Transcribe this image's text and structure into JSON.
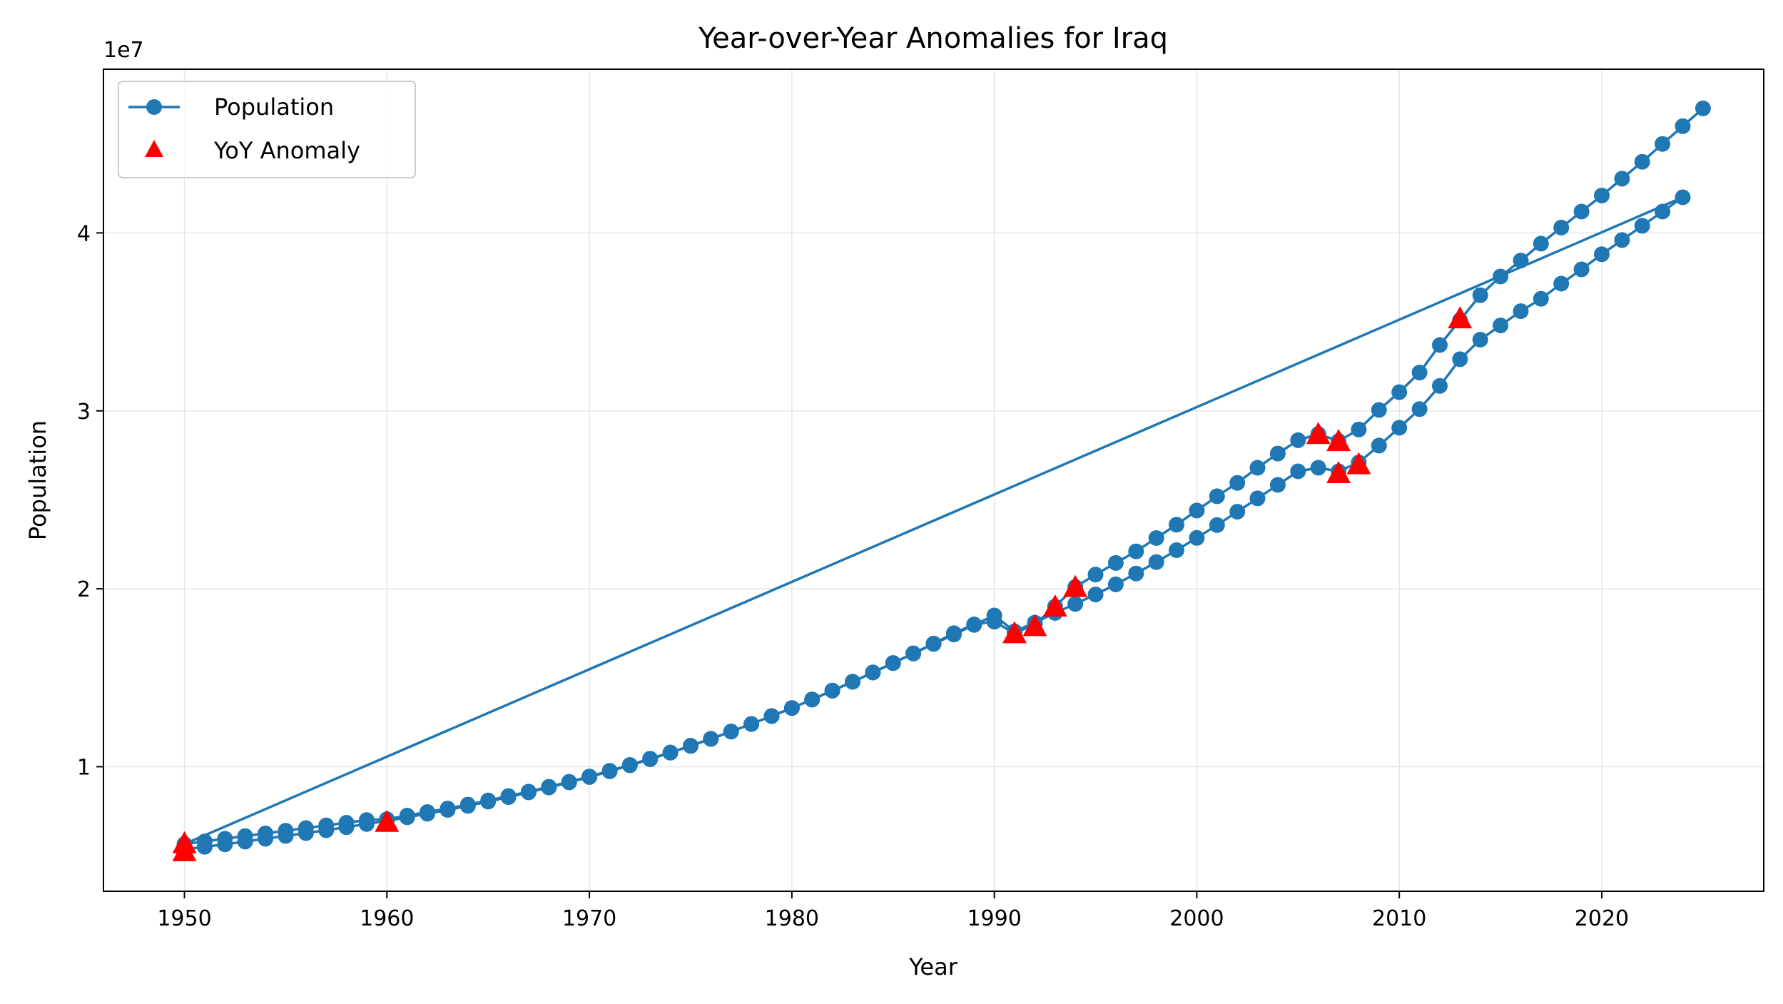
{
  "chart_data": {
    "type": "line",
    "title": "Year-over-Year Anomalies for Iraq",
    "xlabel": "Year",
    "ylabel": "Population",
    "y_offset_label": "1e7",
    "xlim": [
      1946,
      2028
    ],
    "ylim": [
      3000000,
      49200000
    ],
    "x_ticks": [
      1950,
      1960,
      1970,
      1980,
      1990,
      2000,
      2010,
      2020
    ],
    "x_tick_labels": [
      "1950",
      "1960",
      "1970",
      "1980",
      "1990",
      "2000",
      "2010",
      "2020"
    ],
    "y_ticks": [
      10000000,
      20000000,
      30000000,
      40000000
    ],
    "y_tick_labels": [
      "1",
      "2",
      "3",
      "4"
    ],
    "grid": true,
    "legend_position": "top-left",
    "series": [
      {
        "name": "Population",
        "color": "#1f77b4",
        "marker": "circle",
        "points": [
          [
            1950,
            5350000
          ],
          [
            1951,
            5500000
          ],
          [
            1952,
            5640000
          ],
          [
            1953,
            5790000
          ],
          [
            1954,
            5950000
          ],
          [
            1955,
            6110000
          ],
          [
            1956,
            6270000
          ],
          [
            1957,
            6430000
          ],
          [
            1958,
            6600000
          ],
          [
            1959,
            6780000
          ],
          [
            1960,
            6960000
          ],
          [
            1961,
            7160000
          ],
          [
            1962,
            7360000
          ],
          [
            1963,
            7570000
          ],
          [
            1964,
            7800000
          ],
          [
            1965,
            8040000
          ],
          [
            1966,
            8290000
          ],
          [
            1967,
            8560000
          ],
          [
            1968,
            8830000
          ],
          [
            1969,
            9120000
          ],
          [
            1970,
            9420000
          ],
          [
            1971,
            9740000
          ],
          [
            1972,
            10080000
          ],
          [
            1973,
            10420000
          ],
          [
            1974,
            10790000
          ],
          [
            1975,
            11170000
          ],
          [
            1976,
            11560000
          ],
          [
            1977,
            11970000
          ],
          [
            1978,
            12400000
          ],
          [
            1979,
            12840000
          ],
          [
            1980,
            13300000
          ],
          [
            1981,
            13770000
          ],
          [
            1982,
            14270000
          ],
          [
            1983,
            14770000
          ],
          [
            1984,
            15290000
          ],
          [
            1985,
            15820000
          ],
          [
            1986,
            16360000
          ],
          [
            1987,
            16900000
          ],
          [
            1988,
            17430000
          ],
          [
            1989,
            17970000
          ],
          [
            1990,
            18500000
          ],
          [
            1991,
            17600000
          ],
          [
            1992,
            18100000
          ],
          [
            1993,
            18640000
          ],
          [
            1994,
            19150000
          ],
          [
            1995,
            19680000
          ],
          [
            1996,
            20250000
          ],
          [
            1997,
            20860000
          ],
          [
            1998,
            21500000
          ],
          [
            1999,
            22170000
          ],
          [
            2000,
            22860000
          ],
          [
            2001,
            23580000
          ],
          [
            2002,
            24330000
          ],
          [
            2003,
            25080000
          ],
          [
            2004,
            25840000
          ],
          [
            2005,
            26600000
          ],
          [
            2006,
            26800000
          ],
          [
            2007,
            26600000
          ],
          [
            2008,
            27100000
          ],
          [
            2009,
            28050000
          ],
          [
            2010,
            29050000
          ],
          [
            2011,
            30100000
          ],
          [
            2012,
            31400000
          ],
          [
            2013,
            32900000
          ],
          [
            2014,
            34000000
          ],
          [
            2015,
            34800000
          ],
          [
            2016,
            35600000
          ],
          [
            2017,
            36300000
          ],
          [
            2018,
            37150000
          ],
          [
            2019,
            37950000
          ],
          [
            2020,
            38800000
          ],
          [
            2021,
            39600000
          ],
          [
            2022,
            40400000
          ],
          [
            2023,
            41200000
          ],
          [
            2024,
            42000000
          ],
          [
            1950,
            5650000
          ],
          [
            1951,
            5800000
          ],
          [
            1952,
            5950000
          ],
          [
            1953,
            6100000
          ],
          [
            1954,
            6250000
          ],
          [
            1955,
            6400000
          ],
          [
            1956,
            6550000
          ],
          [
            1957,
            6700000
          ],
          [
            1958,
            6850000
          ],
          [
            1959,
            7000000
          ],
          [
            1960,
            7050000
          ],
          [
            1961,
            7250000
          ],
          [
            1962,
            7450000
          ],
          [
            1963,
            7650000
          ],
          [
            1964,
            7870000
          ],
          [
            1965,
            8100000
          ],
          [
            1966,
            8350000
          ],
          [
            1967,
            8600000
          ],
          [
            1968,
            8870000
          ],
          [
            1969,
            9150000
          ],
          [
            1970,
            9450000
          ],
          [
            1971,
            9770000
          ],
          [
            1972,
            10100000
          ],
          [
            1973,
            10450000
          ],
          [
            1974,
            10800000
          ],
          [
            1975,
            11180000
          ],
          [
            1976,
            11570000
          ],
          [
            1977,
            11980000
          ],
          [
            1978,
            12400000
          ],
          [
            1979,
            12850000
          ],
          [
            1980,
            13300000
          ],
          [
            1981,
            13780000
          ],
          [
            1982,
            14280000
          ],
          [
            1983,
            14780000
          ],
          [
            1984,
            15300000
          ],
          [
            1985,
            15830000
          ],
          [
            1986,
            16370000
          ],
          [
            1987,
            16920000
          ],
          [
            1988,
            17500000
          ],
          [
            1989,
            18000000
          ],
          [
            1990,
            18150000
          ],
          [
            1991,
            17500000
          ],
          [
            1992,
            18000000
          ],
          [
            1993,
            19000000
          ],
          [
            1994,
            20100000
          ],
          [
            1995,
            20800000
          ],
          [
            1996,
            21450000
          ],
          [
            1997,
            22100000
          ],
          [
            1998,
            22850000
          ],
          [
            1999,
            23600000
          ],
          [
            2000,
            24400000
          ],
          [
            2001,
            25200000
          ],
          [
            2002,
            25950000
          ],
          [
            2003,
            26800000
          ],
          [
            2004,
            27600000
          ],
          [
            2005,
            28350000
          ],
          [
            2006,
            28700000
          ],
          [
            2007,
            28300000
          ],
          [
            2008,
            28950000
          ],
          [
            2009,
            30050000
          ],
          [
            2010,
            31050000
          ],
          [
            2011,
            32150000
          ],
          [
            2012,
            33700000
          ],
          [
            2013,
            35100000
          ],
          [
            2014,
            36500000
          ],
          [
            2015,
            37550000
          ],
          [
            2016,
            38450000
          ],
          [
            2017,
            39400000
          ],
          [
            2018,
            40300000
          ],
          [
            2019,
            41200000
          ],
          [
            2020,
            42100000
          ],
          [
            2021,
            43050000
          ],
          [
            2022,
            44000000
          ],
          [
            2023,
            45000000
          ],
          [
            2024,
            46000000
          ],
          [
            2025,
            47000000
          ]
        ]
      },
      {
        "name": "YoY Anomaly",
        "color": "#ff0000",
        "marker": "triangle",
        "points": [
          [
            1950,
            5250000
          ],
          [
            1950,
            5700000
          ],
          [
            1960,
            6900000
          ],
          [
            1991,
            17500000
          ],
          [
            1992,
            17900000
          ],
          [
            1993,
            19000000
          ],
          [
            1994,
            20100000
          ],
          [
            2006,
            28700000
          ],
          [
            2007,
            26500000
          ],
          [
            2007,
            28300000
          ],
          [
            2008,
            27000000
          ],
          [
            2013,
            35200000
          ]
        ]
      }
    ]
  }
}
